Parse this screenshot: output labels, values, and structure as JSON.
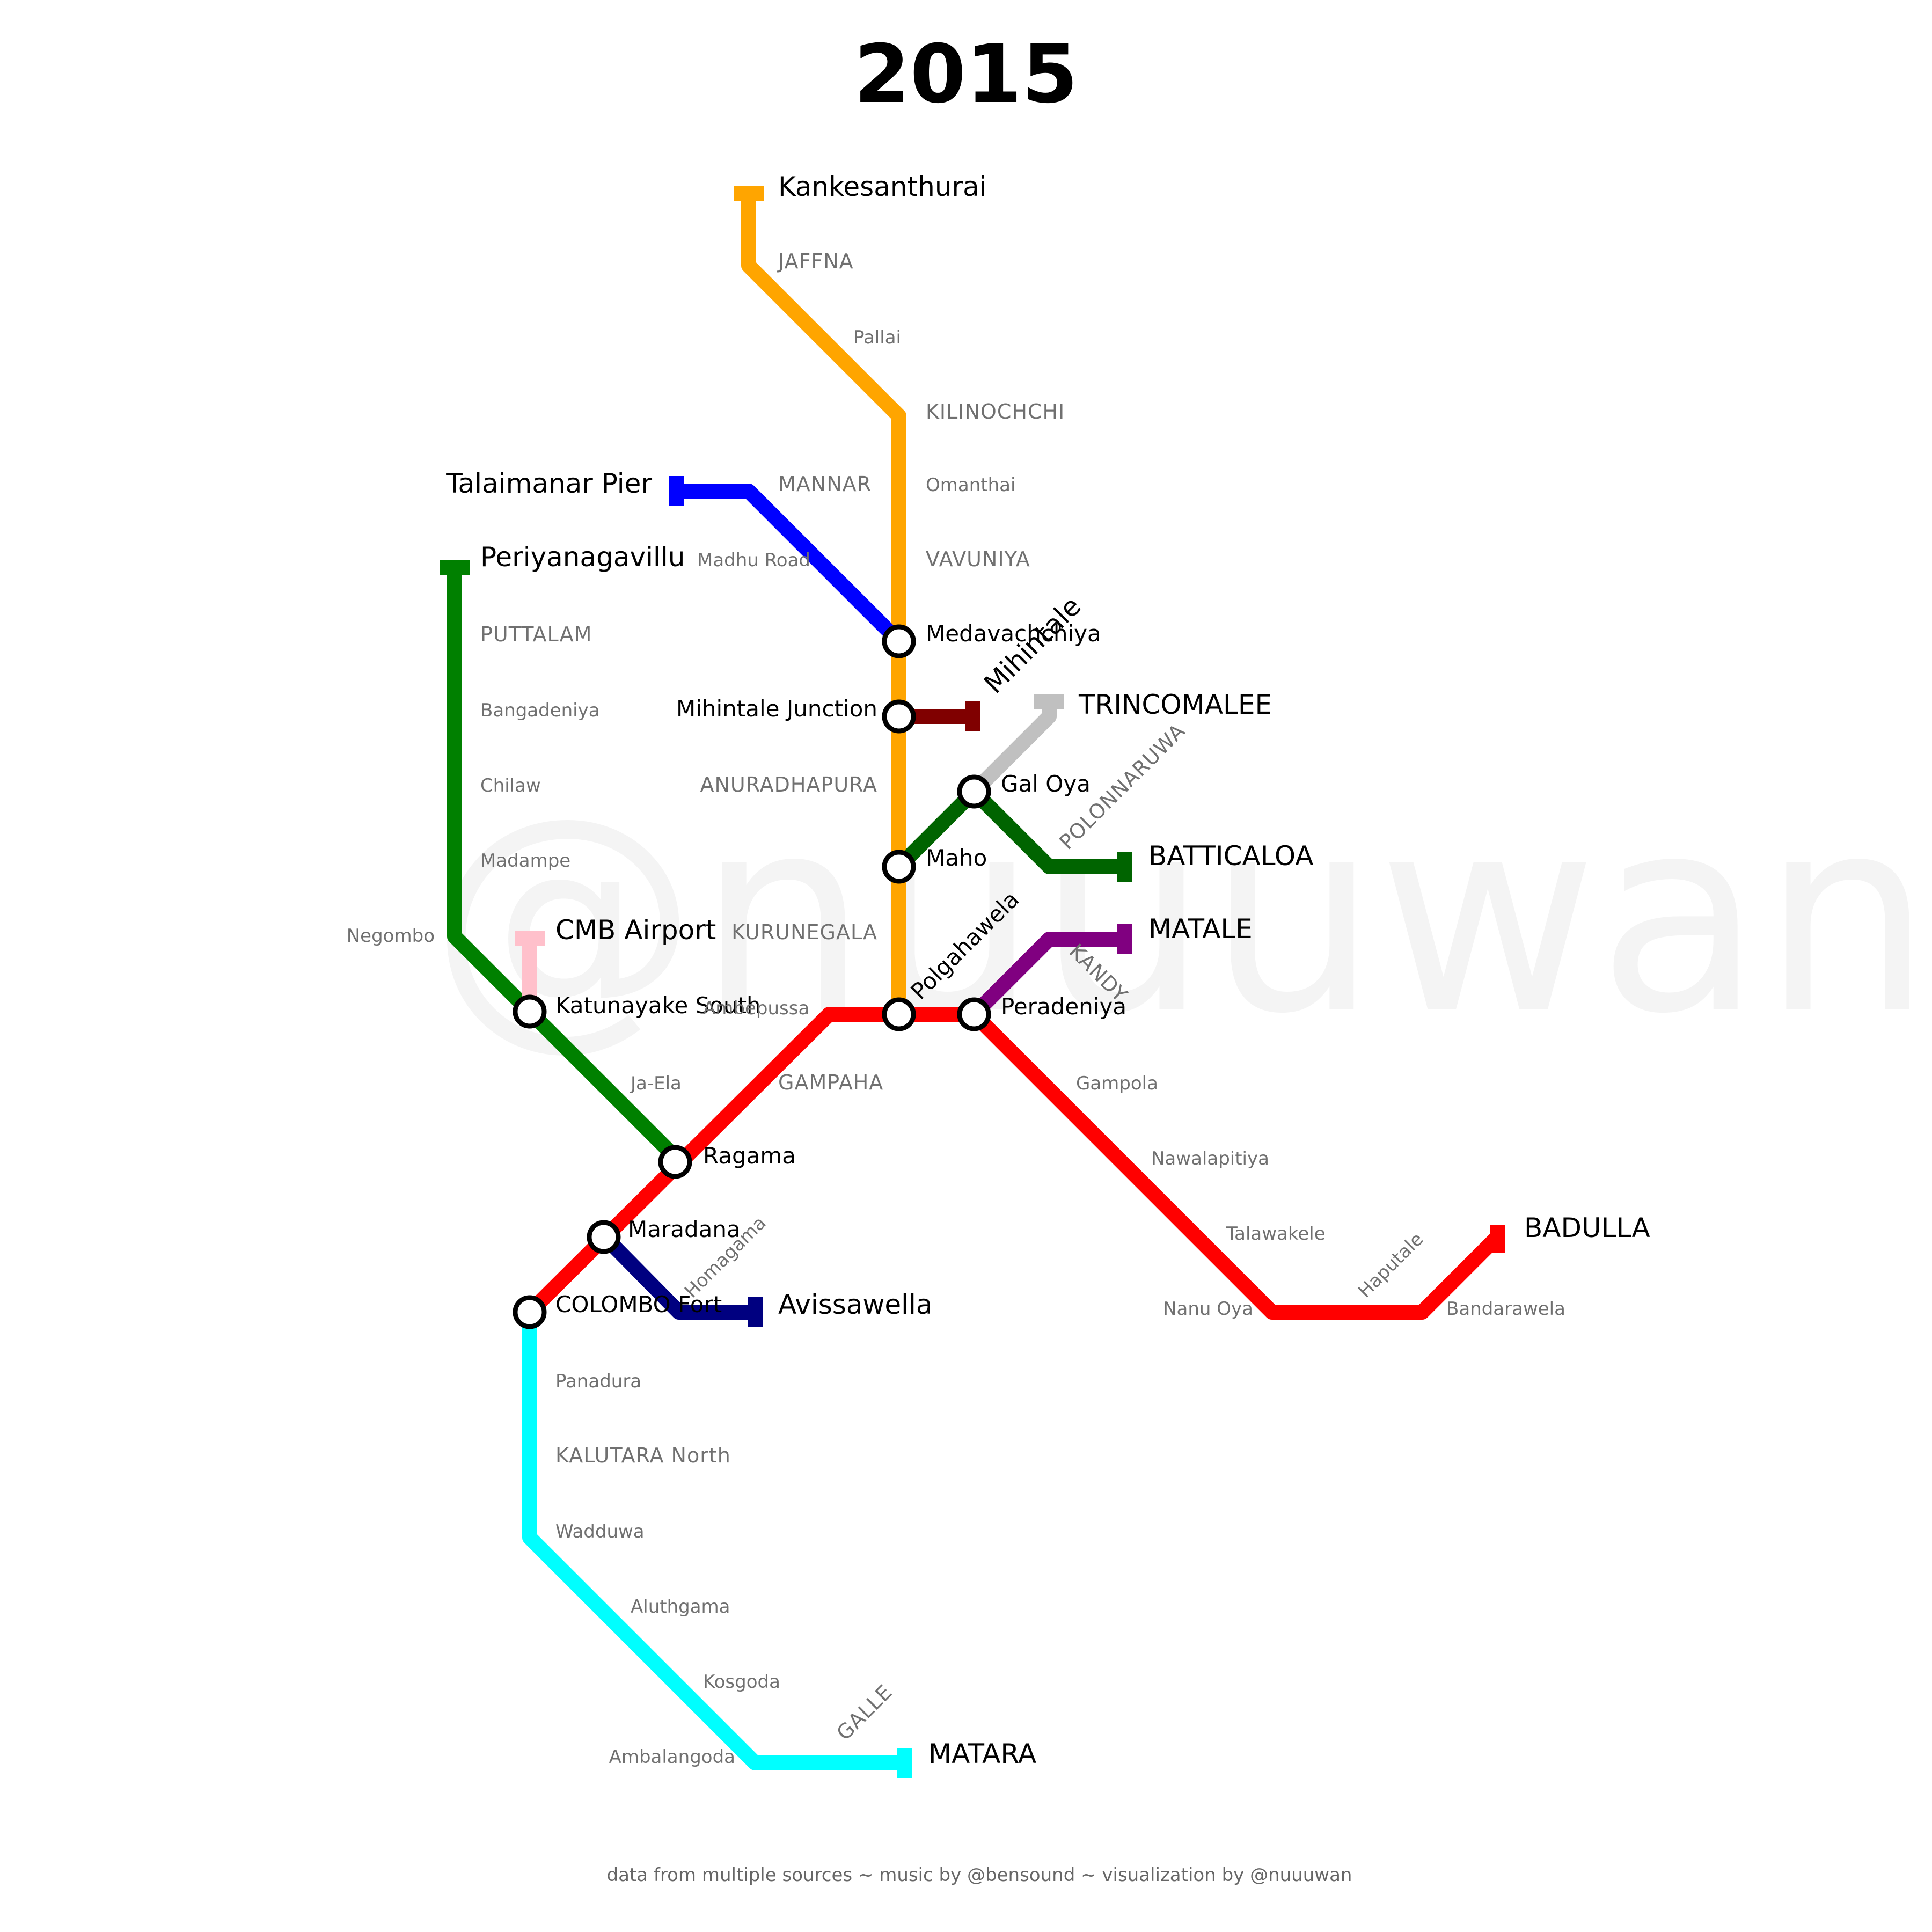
{
  "title": "2015",
  "watermark": "@nuuuwan",
  "credit": "data from multiple sources ~ music by @bensound ~ visualization by @nuuuwan",
  "lines": {
    "orange": "#FFA500",
    "blue": "#0000FF",
    "green": "#008000",
    "dark_green": "#006400",
    "maroon": "#800000",
    "silver": "#C0C0C0",
    "purple": "#800080",
    "red": "#FF0000",
    "navy": "#000080",
    "cyan": "#00FFFF",
    "pink": "#FFC0CB"
  },
  "stations": {
    "medavachchiya": "Medavachchiya",
    "mihintale_junction": "Mihintale Junction",
    "gal_oya": "Gal Oya",
    "maho": "Maho",
    "polgahawela": "Polgahawela",
    "peradeniya": "Peradeniya",
    "katunayake_south": "Katunayake South",
    "ragama": "Ragama",
    "maradana": "Maradana",
    "colombo_fort": "COLOMBO Fort"
  },
  "terminals": {
    "kankesanthurai": "Kankesanthurai",
    "talaimanar_pier": "Talaimanar Pier",
    "periyanagavillu": "Periyanagavillu",
    "mihintale": "Mihintale",
    "trincomalee": "TRINCOMALEE",
    "batticaloa": "BATTICALOA",
    "matale": "MATALE",
    "cmb_airport": "CMB Airport",
    "avissawella": "Avissawella",
    "badulla": "BADULLA",
    "matara": "MATARA"
  },
  "major_labels": {
    "jaffna": "JAFFNA",
    "kilinochchi": "KILINOCHCHI",
    "mannar": "MANNAR",
    "vavuniya": "VAVUNIYA",
    "puttalam": "PUTTALAM",
    "anuradhapura": "ANURADHAPURA",
    "polonnaruwa": "POLONNARUWA",
    "kurunegala": "KURUNEGALA",
    "kandy": "KANDY",
    "gampaha": "GAMPAHA",
    "kalutara_north": "KALUTARA North",
    "galle": "GALLE"
  },
  "minor_labels": {
    "pallai": "Pallai",
    "omanthai": "Omanthai",
    "madhu_road": "Madhu Road",
    "bangadeniya": "Bangadeniya",
    "chilaw": "Chilaw",
    "madampe": "Madampe",
    "negombo": "Negombo",
    "ambepussa": "Ambepussa",
    "ja_ela": "Ja-Ela",
    "gampola": "Gampola",
    "nawalapitiya": "Nawalapitiya",
    "talawakele": "Talawakele",
    "nanu_oya": "Nanu Oya",
    "haputale": "Haputale",
    "bandarawela": "Bandarawela",
    "homagama": "Homagama",
    "panadura": "Panadura",
    "wadduwa": "Wadduwa",
    "aluthgama": "Aluthgama",
    "kosgoda": "Kosgoda",
    "ambalangoda": "Ambalangoda"
  }
}
